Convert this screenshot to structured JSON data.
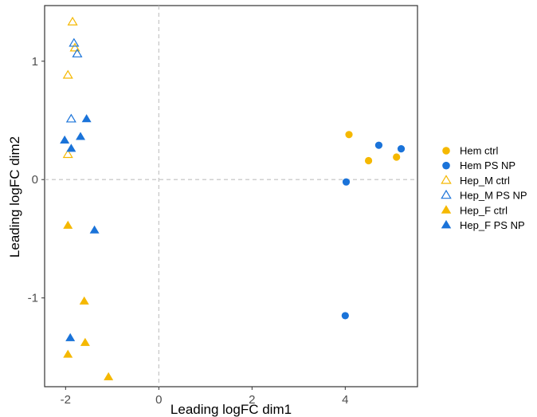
{
  "chart_data": {
    "type": "scatter",
    "title": "",
    "xlabel": "Leading logFC dim1",
    "ylabel": "Leading logFC dim2",
    "xlim": [
      -2.45,
      5.55
    ],
    "ylim": [
      -1.75,
      1.47
    ],
    "xticks": [
      -2,
      0,
      2,
      4
    ],
    "yticks": [
      -1,
      0,
      1
    ],
    "xtick_labels": [
      "-2",
      "0",
      "2",
      "4"
    ],
    "ytick_labels": [
      "-1",
      "0",
      "1"
    ],
    "reference_lines": {
      "x": 0,
      "y": 0,
      "style": "dashed"
    },
    "grid": false,
    "legend_position": "right",
    "colors": {
      "ctrl": "#f5b800",
      "psnp": "#1a73d9",
      "reference": "#c0c0c0",
      "frame": "#333333"
    },
    "series": [
      {
        "name": "Hem ctrl",
        "marker": "circle",
        "filled": true,
        "color": "#f5b800",
        "points": [
          [
            4.08,
            0.38
          ],
          [
            4.5,
            0.16
          ],
          [
            5.1,
            0.19
          ]
        ]
      },
      {
        "name": "Hem PS NP",
        "marker": "circle",
        "filled": true,
        "color": "#1a73d9",
        "points": [
          [
            4.02,
            -0.02
          ],
          [
            4.72,
            0.29
          ],
          [
            5.2,
            0.26
          ],
          [
            4.0,
            -1.15
          ]
        ]
      },
      {
        "name": "Hep_M ctrl",
        "marker": "triangle",
        "filled": false,
        "color": "#f5b800",
        "points": [
          [
            -1.85,
            1.33
          ],
          [
            -1.8,
            1.11
          ],
          [
            -1.95,
            0.88
          ],
          [
            -1.95,
            0.21
          ]
        ]
      },
      {
        "name": "Hep_M PS NP",
        "marker": "triangle",
        "filled": false,
        "color": "#1a73d9",
        "points": [
          [
            -1.82,
            1.15
          ],
          [
            -1.75,
            1.06
          ],
          [
            -1.88,
            0.51
          ]
        ]
      },
      {
        "name": "Hep_F ctrl",
        "marker": "triangle",
        "filled": true,
        "color": "#f5b800",
        "points": [
          [
            -1.95,
            -0.39
          ],
          [
            -1.6,
            -1.03
          ],
          [
            -1.58,
            -1.38
          ],
          [
            -1.95,
            -1.48
          ],
          [
            -1.08,
            -1.67
          ]
        ]
      },
      {
        "name": "Hep_F PS NP",
        "marker": "triangle",
        "filled": true,
        "color": "#1a73d9",
        "points": [
          [
            -1.55,
            0.51
          ],
          [
            -1.68,
            0.36
          ],
          [
            -2.02,
            0.33
          ],
          [
            -1.88,
            0.26
          ],
          [
            -1.38,
            -0.43
          ],
          [
            -1.9,
            -1.34
          ]
        ]
      }
    ]
  }
}
